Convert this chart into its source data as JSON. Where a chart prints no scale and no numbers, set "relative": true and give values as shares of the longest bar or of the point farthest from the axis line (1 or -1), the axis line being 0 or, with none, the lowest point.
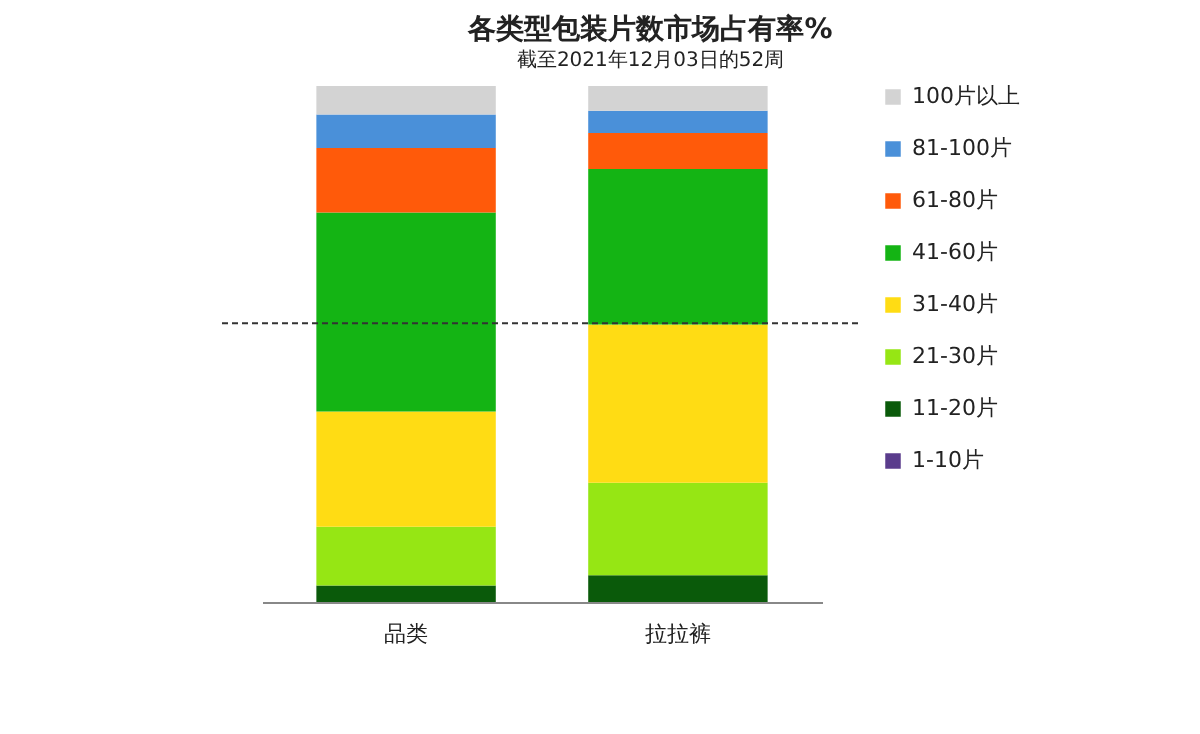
{
  "chart_data": {
    "type": "bar",
    "title": "各类型包装片数市场占有率%",
    "subtitle": "截至2021年12月03日的52周",
    "categories": [
      "品类",
      "拉拉裤"
    ],
    "stacked": true,
    "relative": true,
    "legend": "right",
    "series": [
      {
        "name": "1-10片",
        "color": "#5a3c8c",
        "values": [
          0,
          0
        ]
      },
      {
        "name": "11-20片",
        "color": "#0a5a0a",
        "values": [
          0.032,
          0.052
        ]
      },
      {
        "name": "21-30片",
        "color": "#96e614",
        "values": [
          0.114,
          0.179
        ]
      },
      {
        "name": "31-40片",
        "color": "#ffdc14",
        "values": [
          0.223,
          0.307
        ]
      },
      {
        "name": "41-60片",
        "color": "#14b414",
        "values": [
          0.386,
          0.301
        ]
      },
      {
        "name": "61-80片",
        "color": "#ff5a0a",
        "values": [
          0.125,
          0.07
        ]
      },
      {
        "name": "81-100片",
        "color": "#4a90d9",
        "values": [
          0.065,
          0.043
        ]
      },
      {
        "name": "100片以上",
        "color": "#d3d3d3",
        "values": [
          0.055,
          0.048
        ]
      }
    ],
    "ref_lines": [
      {
        "axis": "y",
        "value": 0.54,
        "color": "#333333",
        "line_style": "dashed"
      }
    ]
  }
}
